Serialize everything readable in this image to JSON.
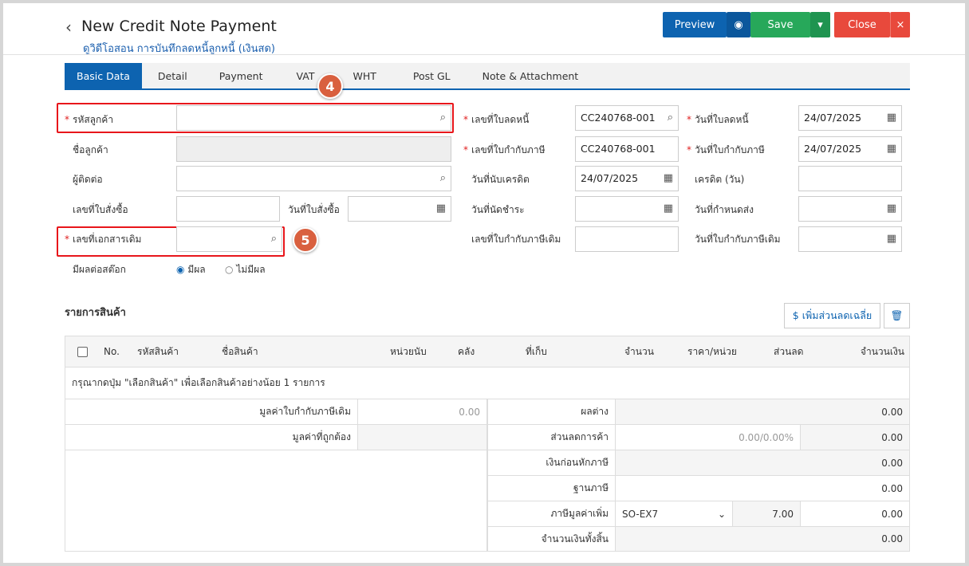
{
  "header": {
    "title": "New Credit Note Payment",
    "subtitle": "ดูวิดีโอสอน การบันทึกลดหนี้ลูกหนี้ (เงินสด)",
    "buttons": {
      "preview": "Preview",
      "save": "Save",
      "close": "Close"
    }
  },
  "tabs": [
    "Basic Data",
    "Detail",
    "Payment",
    "VAT",
    "WHT",
    "Post GL",
    "Note & Attachment"
  ],
  "badges": [
    "4",
    "5"
  ],
  "form": {
    "customer_code": "รหัสลูกค้า",
    "customer_name": "ชื่อลูกค้า",
    "contact": "ผู้ติดต่อ",
    "po_no": "เลขที่ใบสั่งซื้อ",
    "po_date": "วันที่ใบสั่งซื้อ",
    "ref_doc": "เลขที่เอกสารเดิม",
    "stock_effect": "มีผลต่อสต๊อก",
    "stock_yes": "มีผล",
    "stock_no": "ไม่มีผล",
    "cn_no_label": "เลขที่ใบลดหนี้",
    "cn_no": "CC240768-001",
    "cn_date_label": "วันที่ใบลดหนี้",
    "cn_date": "24/07/2025",
    "tax_no_label": "เลขที่ใบกำกับภาษี",
    "tax_no": "CC240768-001",
    "tax_date_label": "วันที่ใบกำกับภาษี",
    "tax_date": "24/07/2025",
    "credit_date_label": "วันที่นับเครดิต",
    "credit_date": "24/07/2025",
    "credit_days_label": "เครดิต (วัน)",
    "due_date_label": "วันที่นัดชำระ",
    "delivery_date_label": "วันที่กำหนดส่ง",
    "orig_tax_no_label": "เลขที่ใบกำกับภาษีเดิม",
    "orig_tax_date_label": "วันที่ใบกำกับภาษีเดิม"
  },
  "items": {
    "title": "รายการสินค้า",
    "add_discount": "$ เพิ่มส่วนลดเฉลี่ย",
    "columns": [
      "No.",
      "รหัสสินค้า",
      "ชื่อสินค้า",
      "หน่วยนับ",
      "คลัง",
      "ที่เก็บ",
      "จำนวน",
      "ราคา/หน่วย",
      "ส่วนลด",
      "จำนวนเงิน"
    ],
    "empty": "กรุณากดปุ่ม \"เลือกสินค้า\" เพื่อเลือกสินค้าอย่างน้อย 1 รายการ"
  },
  "summary": {
    "orig_value_label": "มูลค่าใบกำกับภาษีเดิม",
    "orig_value": "0.00",
    "correct_value_label": "มูลค่าที่ถูกต้อง",
    "diff_label": "ผลต่าง",
    "diff": "0.00",
    "trade_discount_label": "ส่วนลดการค้า",
    "trade_discount_input": "0.00/0.00%",
    "trade_discount": "0.00",
    "pre_tax_label": "เงินก่อนหักภาษี",
    "pre_tax": "0.00",
    "tax_base_label": "ฐานภาษี",
    "tax_base": "0.00",
    "vat_label": "ภาษีมูลค่าเพิ่ม",
    "vat_code": "SO-EX7",
    "vat_rate": "7.00",
    "vat": "0.00",
    "total_label": "จำนวนเงินทั้งสิ้น",
    "total": "0.00"
  }
}
